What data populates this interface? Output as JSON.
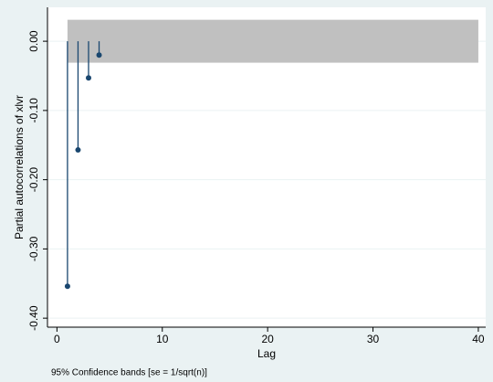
{
  "chart_data": {
    "type": "stem",
    "y_label": "Partial autocorrelations of xlvr",
    "x_label": "Lag",
    "note": "95% Confidence bands [se = 1/sqrt(n)]",
    "x": [
      1,
      2,
      3,
      4
    ],
    "values": [
      -0.354,
      -0.157,
      -0.053,
      -0.02
    ],
    "color": "#1a476f",
    "band": {
      "x": [
        1,
        40
      ],
      "lower": -0.031,
      "upper": 0.031,
      "color": "#c0c0c0"
    },
    "xlim": [
      -0.9,
      40.7
    ],
    "ylim": [
      -0.413,
      0.049
    ],
    "xticks": [
      0,
      10,
      20,
      30,
      40
    ],
    "yticks": [
      {
        "value": -0.4,
        "label": "-0.40"
      },
      {
        "value": -0.3,
        "label": "-0.30"
      },
      {
        "value": -0.2,
        "label": "-0.20"
      },
      {
        "value": -0.1,
        "label": "-0.10"
      },
      {
        "value": 0,
        "label": "0.00"
      }
    ],
    "grid": true
  }
}
